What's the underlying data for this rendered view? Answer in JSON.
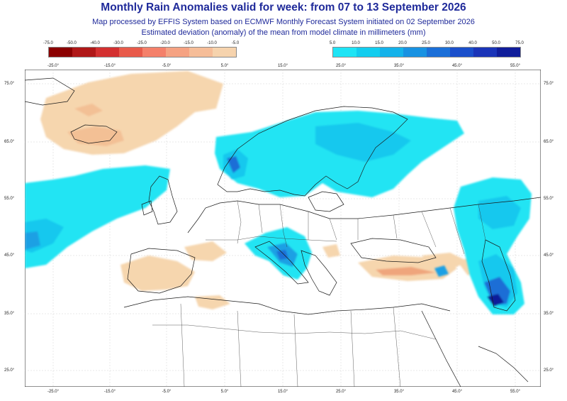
{
  "header": {
    "title": "Monthly Rain Anomalies valid for week: from 07 to 13 September 2026",
    "subtitle1": "Map processed by EFFIS System based on ECMWF Monthly Forecast System initiated on 02 September 2026",
    "subtitle2": "Estimated deviation (anomaly) of the mean from model climate in millimeters (mm)"
  },
  "legend": {
    "negative": {
      "labels": [
        "-75.0",
        "-50.0",
        "-40.0",
        "-30.0",
        "-25.0",
        "-20.0",
        "-15.0",
        "-10.0",
        "-5.0"
      ],
      "colors": [
        "#8b0000",
        "#b01818",
        "#d33030",
        "#e85a4a",
        "#f4806a",
        "#f5a282",
        "#f6bd98",
        "#f6d3ad"
      ]
    },
    "positive": {
      "labels": [
        "5.0",
        "10.0",
        "15.0",
        "20.0",
        "25.0",
        "30.0",
        "40.0",
        "50.0",
        "75.0"
      ],
      "colors": [
        "#1ee4f5",
        "#12cdef",
        "#14b2ea",
        "#1892e2",
        "#1b6fd8",
        "#1a4fcb",
        "#1a34b8",
        "#101d9a"
      ]
    }
  },
  "axes": {
    "lon_labels": [
      "-25.0°",
      "-15.0°",
      "-5.0°",
      "5.0°",
      "15.0°",
      "25.0°",
      "35.0°",
      "45.0°",
      "55.0°"
    ],
    "lat_labels": [
      "75.0°",
      "65.0°",
      "55.0°",
      "45.0°",
      "35.0°",
      "25.0°"
    ]
  },
  "map": {
    "ocean_color": "#ffffff",
    "land_color": "#ffffff",
    "border_color": "#1a1a1a",
    "wet_colors": [
      "#22e4f3",
      "#18c8ee",
      "#1aa0e4",
      "#1c6ed6",
      "#1540bf",
      "#101d9a"
    ],
    "dry_colors": [
      "#f6d6ae",
      "#f3c095",
      "#efa57c"
    ]
  }
}
